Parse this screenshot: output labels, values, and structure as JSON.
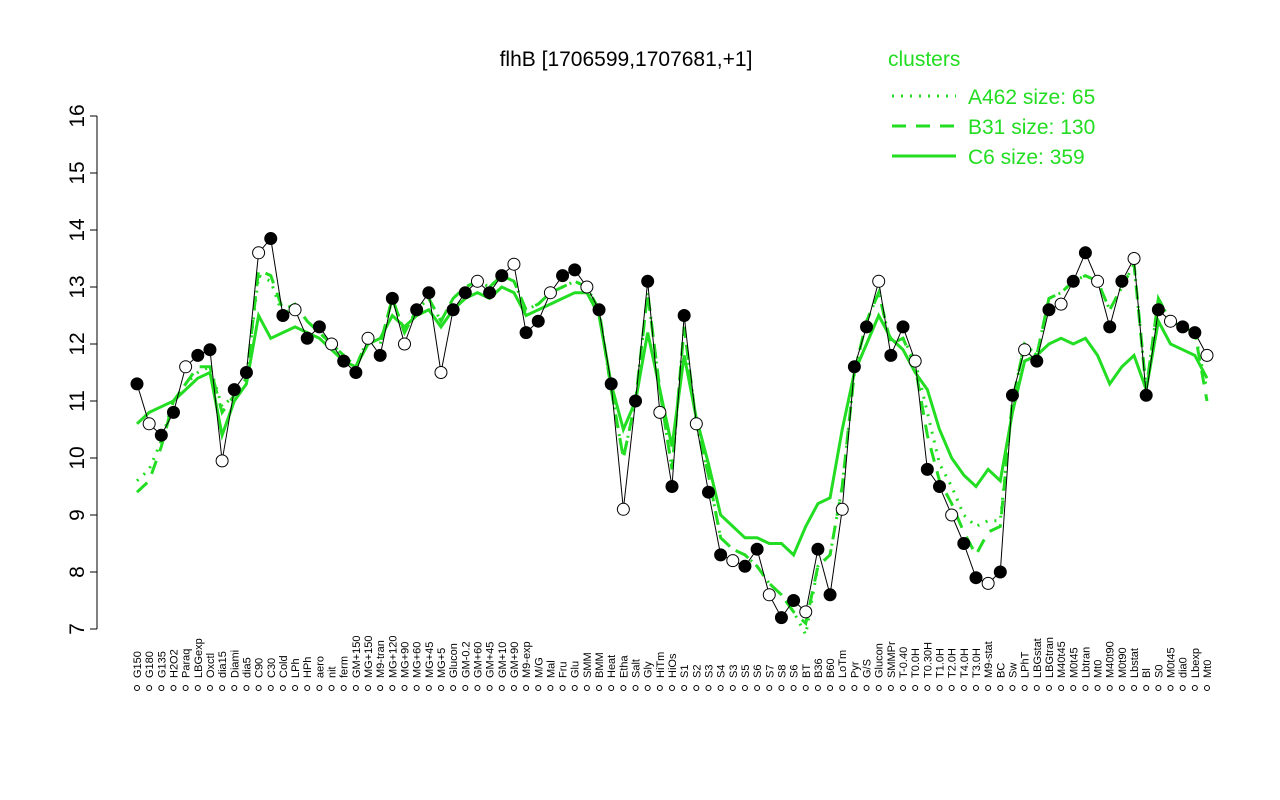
{
  "chart_data": {
    "type": "line",
    "title": "flhB [1706599,1707681,+1]",
    "legend_title": "clusters",
    "legend_position": "top-right",
    "ylim": [
      7,
      16
    ],
    "yticks": [
      7,
      8,
      9,
      10,
      11,
      12,
      13,
      14,
      15,
      16
    ],
    "categories": [
      "G150",
      "G180",
      "G135",
      "H2O2",
      "Paraq",
      "LBGexp",
      "Oxctl",
      "dia15",
      "Diami",
      "dia5",
      "C90",
      "C30",
      "Cold",
      "LPh",
      "HPh",
      "aero",
      "nit",
      "ferm",
      "GM+150",
      "MG+150",
      "M9-tran",
      "MG+120",
      "MG+90",
      "MG+60",
      "MG+45",
      "MG+5",
      "Glucon",
      "GM-0.2",
      "GM+60",
      "GM+45",
      "GM+10",
      "GM+90",
      "M9-exp",
      "M/G",
      "Mal",
      "Fru",
      "Glu",
      "SMM",
      "BMM",
      "Heat",
      "Etha",
      "Salt",
      "Gly",
      "HiTm",
      "HiOs",
      "S1",
      "S2",
      "S3",
      "S4",
      "S3",
      "S5",
      "S6",
      "S7",
      "S8",
      "S6",
      "BT",
      "B36",
      "B60",
      "LoTm",
      "Pyr",
      "G/S",
      "Glucon",
      "SMMPr",
      "T-0.40",
      "T0.0H",
      "T0.30H",
      "T1.0H",
      "T2.0H",
      "T4.0H",
      "T3.0H",
      "M9-stat",
      "BC",
      "Sw",
      "LPhT",
      "LBGstat",
      "LBGtran",
      "M40t45",
      "M0t45",
      "Lbtran",
      "Mt0",
      "M40t90",
      "M0t90",
      "Lbstat",
      "Bl",
      "S0",
      "M0t45",
      "dia0",
      "Lbexp",
      "Mt0"
    ],
    "values": [
      11.3,
      10.6,
      10.4,
      10.8,
      11.6,
      11.8,
      11.9,
      9.95,
      11.2,
      11.5,
      13.6,
      13.85,
      12.5,
      12.6,
      12.1,
      12.3,
      12.0,
      11.7,
      11.5,
      12.1,
      11.8,
      12.8,
      12.0,
      12.6,
      12.9,
      11.5,
      12.6,
      12.9,
      13.1,
      12.9,
      13.2,
      13.4,
      12.2,
      12.4,
      12.9,
      13.2,
      13.3,
      13.0,
      12.6,
      11.3,
      9.1,
      11.0,
      13.1,
      10.8,
      9.5,
      12.5,
      10.6,
      9.4,
      8.3,
      8.2,
      8.1,
      8.4,
      7.6,
      7.2,
      7.5,
      7.3,
      8.4,
      7.6,
      9.1,
      11.6,
      12.3,
      13.1,
      11.8,
      12.3,
      11.7,
      9.8,
      9.5,
      9.0,
      8.5,
      7.9,
      7.8,
      8.0,
      11.1,
      11.9,
      11.7,
      12.6,
      12.7,
      13.1,
      13.6,
      13.1,
      12.3,
      13.1,
      13.5,
      11.1,
      12.6,
      12.4,
      12.3,
      12.2,
      11.8
    ],
    "color": "#000000",
    "series": [
      {
        "name": "A462 size: 65",
        "color": "#22dd22",
        "linestyle": "dotted",
        "values": [
          9.6,
          9.8,
          10.3,
          11.0,
          11.3,
          11.5,
          11.6,
          10.9,
          11.1,
          11.4,
          13.2,
          13.1,
          12.5,
          12.7,
          12.4,
          12.2,
          12.0,
          11.8,
          11.6,
          12.1,
          12.0,
          12.8,
          12.2,
          12.6,
          12.8,
          12.4,
          12.8,
          13.0,
          13.1,
          13.0,
          13.2,
          13.1,
          12.6,
          12.7,
          12.9,
          13.0,
          13.1,
          13.0,
          12.6,
          11.2,
          10.0,
          11.0,
          12.9,
          11.2,
          9.8,
          12.3,
          10.6,
          9.7,
          8.6,
          8.4,
          8.3,
          8.1,
          7.8,
          7.6,
          7.3,
          6.9,
          8.1,
          8.3,
          9.5,
          11.5,
          12.4,
          12.9,
          12.0,
          12.1,
          11.7,
          10.8,
          9.9,
          9.5,
          9.0,
          8.8,
          8.9,
          8.9,
          11.0,
          12.0,
          11.8,
          12.8,
          12.9,
          13.1,
          13.2,
          13.1,
          12.6,
          13.0,
          13.4,
          11.2,
          12.8,
          12.4,
          12.3,
          12.2,
          11.2
        ]
      },
      {
        "name": "B31 size: 130",
        "color": "#22dd22",
        "linestyle": "dashed",
        "values": [
          9.4,
          9.6,
          10.2,
          11.0,
          11.3,
          11.6,
          11.6,
          10.8,
          11.1,
          11.4,
          13.3,
          13.2,
          12.6,
          12.7,
          12.4,
          12.2,
          12.0,
          11.8,
          11.6,
          12.1,
          12.0,
          12.8,
          12.2,
          12.6,
          12.8,
          12.4,
          12.8,
          13.0,
          13.1,
          13.0,
          13.2,
          13.1,
          12.6,
          12.7,
          12.9,
          13.0,
          13.1,
          13.0,
          12.6,
          11.2,
          10.0,
          11.0,
          12.9,
          11.2,
          9.8,
          12.3,
          10.6,
          9.7,
          8.6,
          8.4,
          8.3,
          8.1,
          7.8,
          7.6,
          7.3,
          7.1,
          8.1,
          8.3,
          9.5,
          11.5,
          12.4,
          12.9,
          12.0,
          12.1,
          11.6,
          10.4,
          9.6,
          9.2,
          8.7,
          8.3,
          8.7,
          8.8,
          11.0,
          12.0,
          11.8,
          12.8,
          12.9,
          13.1,
          13.2,
          13.1,
          12.6,
          13.0,
          13.4,
          11.2,
          12.8,
          12.4,
          12.3,
          12.2,
          11.0
        ]
      },
      {
        "name": "C6 size: 359",
        "color": "#22dd22",
        "linestyle": "solid",
        "values": [
          10.6,
          10.8,
          10.9,
          11.0,
          11.2,
          11.4,
          11.5,
          10.4,
          11.0,
          11.3,
          12.5,
          12.1,
          12.2,
          12.3,
          12.2,
          12.1,
          11.9,
          11.7,
          11.6,
          12.0,
          12.1,
          12.5,
          12.3,
          12.5,
          12.6,
          12.3,
          12.6,
          12.8,
          12.9,
          12.8,
          13.0,
          12.9,
          12.5,
          12.6,
          12.7,
          12.8,
          12.9,
          12.9,
          12.5,
          11.3,
          10.5,
          11.0,
          12.2,
          11.2,
          10.2,
          11.8,
          10.7,
          9.9,
          9.0,
          8.8,
          8.6,
          8.6,
          8.5,
          8.5,
          8.3,
          8.8,
          9.2,
          9.3,
          10.5,
          11.5,
          12.0,
          12.5,
          12.1,
          11.9,
          11.5,
          11.2,
          10.5,
          10.0,
          9.7,
          9.5,
          9.8,
          9.6,
          10.8,
          11.7,
          11.8,
          12.0,
          12.1,
          12.0,
          12.1,
          11.8,
          11.3,
          11.6,
          11.8,
          11.2,
          12.4,
          12.0,
          11.9,
          11.8,
          11.4
        ]
      }
    ]
  }
}
